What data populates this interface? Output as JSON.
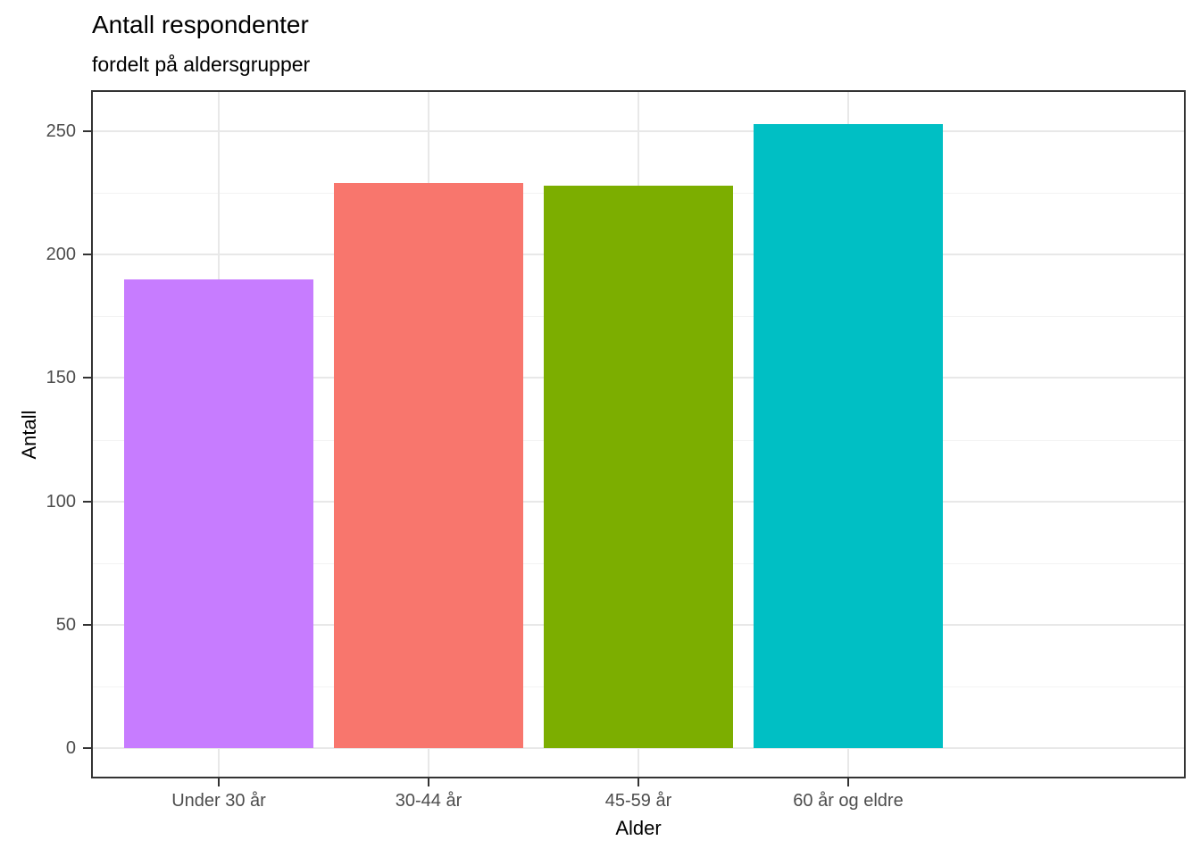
{
  "header": {
    "title": "Antall respondenter",
    "subtitle": "fordelt på aldersgrupper"
  },
  "chart_data": {
    "type": "bar",
    "title": "Antall respondenter",
    "subtitle": "fordelt på aldersgrupper",
    "categories": [
      "Under 30 år",
      "30-44 år",
      "45-59 år",
      "60 år og eldre"
    ],
    "values": [
      190,
      229,
      228,
      253
    ],
    "bar_colors": [
      "#C77CFF",
      "#F8766D",
      "#7CAE00",
      "#00BFC4"
    ],
    "xlabel": "Alder",
    "ylabel": "Antall",
    "y_ticks": [
      0,
      50,
      100,
      150,
      200,
      250
    ],
    "ylim": [
      -13,
      266
    ],
    "grid": true,
    "legend": "none",
    "style": {
      "panel_background": "#FFFFFF",
      "panel_border": "#333333",
      "grid_major": "#E8E8E8",
      "grid_minor": "#F3F3F3",
      "tick_color": "#333333",
      "axis_text_color": "#4D4D4D",
      "title_color": "#000000"
    }
  }
}
